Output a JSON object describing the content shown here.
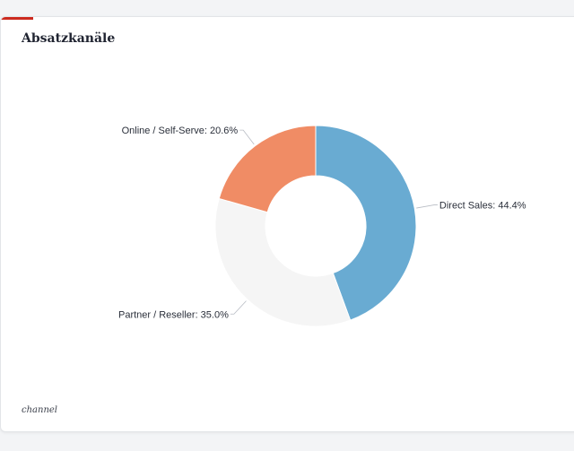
{
  "card": {
    "title": "Absatzkanäle",
    "caption": "channel"
  },
  "colors": {
    "accent": "#cc2a1f",
    "direct_sales": "#69abd2",
    "partner_reseller": "#f5f5f5",
    "online_self_serve": "#f08c65"
  },
  "chart_data": {
    "type": "pie",
    "donut": true,
    "title": "Absatzkanäle",
    "slices": [
      {
        "label": "Direct Sales",
        "value": 44.4,
        "display": "Direct Sales: 44.4%",
        "color": "#69abd2"
      },
      {
        "label": "Partner / Reseller",
        "value": 35.0,
        "display": "Partner / Reseller: 35.0%",
        "color": "#f5f5f5"
      },
      {
        "label": "Online / Self-Serve",
        "value": 20.6,
        "display": "Online / Self-Serve: 20.6%",
        "color": "#f08c65"
      }
    ]
  }
}
